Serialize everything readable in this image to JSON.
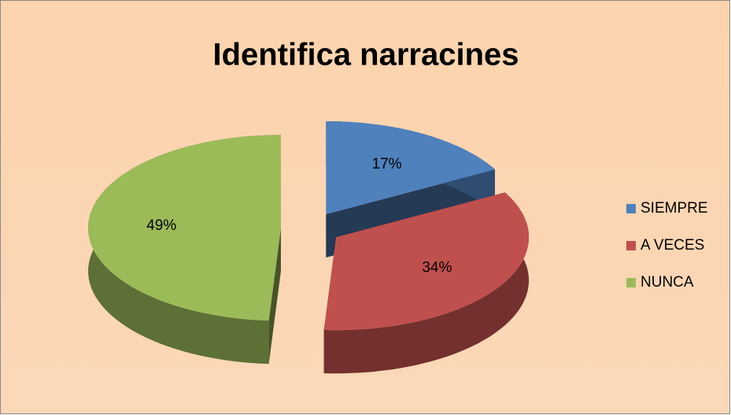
{
  "chart_data": {
    "type": "pie",
    "title": "Identifica narracines",
    "categories": [
      "SIEMPRE",
      "A VECES",
      "NUNCA"
    ],
    "values": [
      17,
      34,
      49
    ],
    "value_labels": [
      "17%",
      "34%",
      "49%"
    ],
    "colors": [
      "#4f81bd",
      "#c0504d",
      "#9bbb59"
    ],
    "legend": "right"
  }
}
